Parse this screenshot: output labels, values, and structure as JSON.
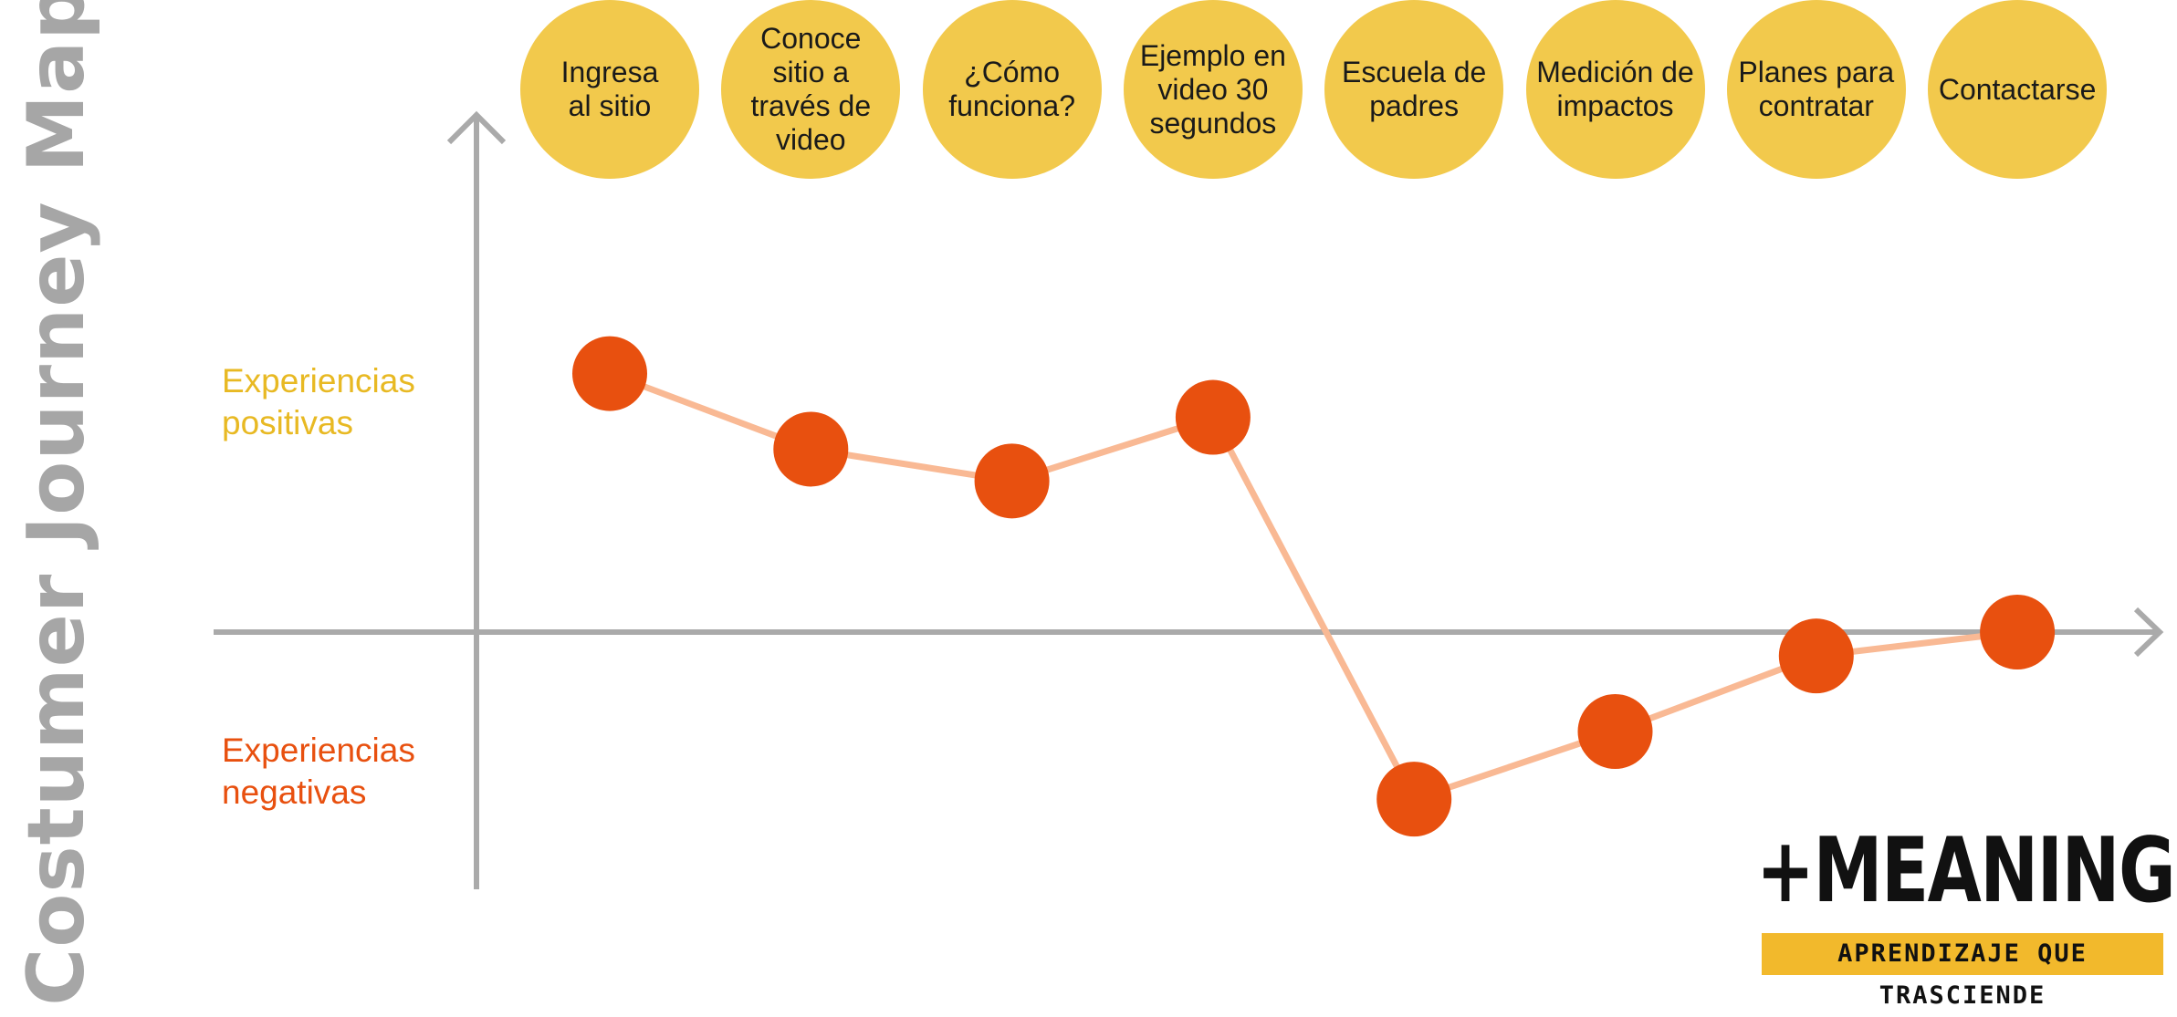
{
  "title": "Costumer Journey Map",
  "legend": {
    "positive": "Experiencias\npositivas",
    "negative": "Experiencias\nnegativas"
  },
  "stages": [
    "Ingresa\nal sitio",
    "Conoce\nsitio a\ntravés de\nvideo",
    "¿Cómo\nfunciona?",
    "Ejemplo en\nvideo 30\nsegundos",
    "Escuela de\npadres",
    "Medición de\nimpactos",
    "Planes para\ncontratar",
    "Contactarse"
  ],
  "colors": {
    "stage_fill": "#f2c94c",
    "point": "#e8500f",
    "line": "#f9b994",
    "axis": "#aaaaaa",
    "positive_label": "#e8b923",
    "negative_label": "#e8500f"
  },
  "chart_data": {
    "type": "line",
    "x": [
      "Ingresa al sitio",
      "Conoce sitio a través de video",
      "¿Cómo funciona?",
      "Ejemplo en video 30 segundos",
      "Escuela de padres",
      "Medición de impactos",
      "Planes para contratar",
      "Contactarse"
    ],
    "values": [
      0.65,
      0.46,
      0.38,
      0.54,
      -0.42,
      -0.25,
      -0.06,
      0.0
    ],
    "ylim": [
      -1,
      1
    ],
    "grid": false
  },
  "logo": {
    "main": "+MEANING",
    "tagline": "APRENDIZAJE QUE TRASCIENDE"
  }
}
